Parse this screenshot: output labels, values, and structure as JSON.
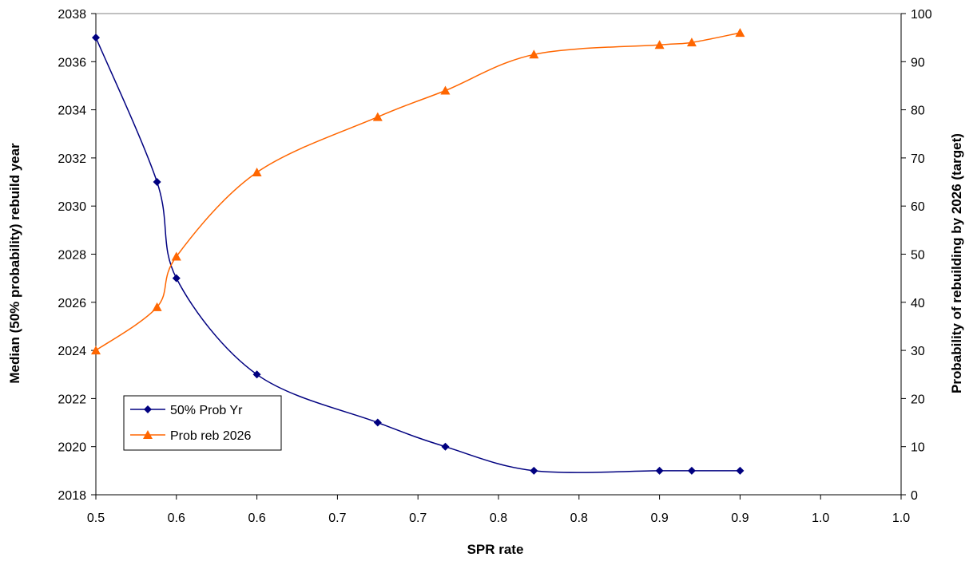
{
  "chart_data": {
    "type": "line",
    "xlabel": "SPR rate",
    "ylabel_left": "Median (50% probability) rebuild year",
    "ylabel_right": "Probability of rebuilding by 2026 (target)",
    "x_ticks": [
      "0.5",
      "0.6",
      "0.6",
      "0.7",
      "0.7",
      "0.8",
      "0.8",
      "0.9",
      "0.9",
      "1.0",
      "1.0"
    ],
    "xlim": [
      0.5,
      1.0
    ],
    "ylim_left": [
      2018,
      2038
    ],
    "ylim_right": [
      0,
      100
    ],
    "y_ticks_left": [
      "2018",
      "2020",
      "2022",
      "2024",
      "2026",
      "2028",
      "2030",
      "2032",
      "2034",
      "2036",
      "2038"
    ],
    "y_ticks_right": [
      "0",
      "10",
      "20",
      "30",
      "40",
      "50",
      "60",
      "70",
      "80",
      "90",
      "100"
    ],
    "grid": false,
    "legend_position": "bottom-left",
    "series": [
      {
        "name": "50% Prob Yr",
        "axis": "left",
        "color": "#000080",
        "marker": "diamond",
        "x": [
          0.5,
          0.538,
          0.55,
          0.6,
          0.675,
          0.717,
          0.772,
          0.85,
          0.87,
          0.9
        ],
        "y": [
          2037,
          2031,
          2027,
          2023,
          2021,
          2020,
          2019,
          2019,
          2019,
          2019
        ]
      },
      {
        "name": "Prob reb 2026",
        "axis": "right",
        "color": "#FF6600",
        "marker": "triangle",
        "x": [
          0.5,
          0.538,
          0.55,
          0.6,
          0.675,
          0.717,
          0.772,
          0.85,
          0.87,
          0.9
        ],
        "y": [
          30,
          39,
          49.5,
          67,
          78.5,
          84,
          91.5,
          93.5,
          94,
          96
        ]
      }
    ]
  }
}
